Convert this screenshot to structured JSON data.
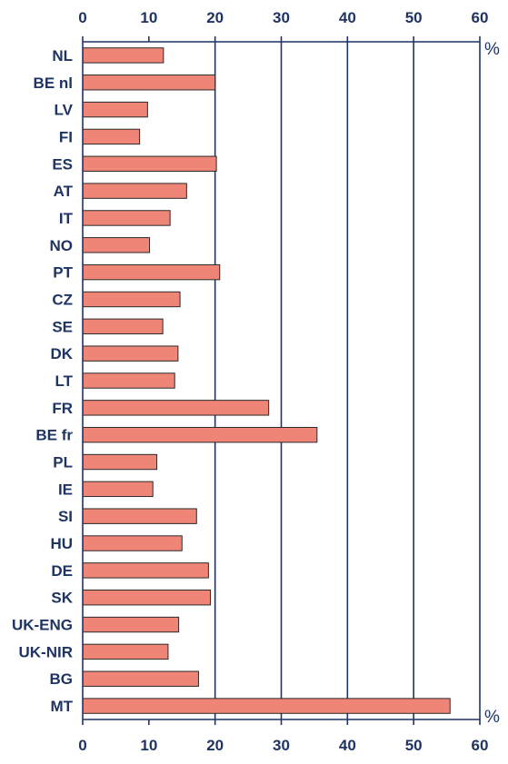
{
  "chart_data": {
    "type": "bar",
    "orientation": "horizontal",
    "categories": [
      "NL",
      "BE nl",
      "LV",
      "FI",
      "ES",
      "AT",
      "IT",
      "NO",
      "PT",
      "CZ",
      "SE",
      "DK",
      "LT",
      "FR",
      "BE fr",
      "PL",
      "IE",
      "SI",
      "HU",
      "DE",
      "SK",
      "UK-ENG",
      "UK-NIR",
      "BG",
      "MT"
    ],
    "values": [
      12.2,
      20.0,
      9.8,
      8.6,
      20.2,
      15.7,
      13.2,
      10.1,
      20.7,
      14.7,
      12.1,
      14.4,
      13.9,
      28.1,
      35.4,
      11.2,
      10.6,
      17.2,
      15.0,
      19.0,
      19.3,
      14.5,
      12.9,
      17.5,
      55.5
    ],
    "xlim": [
      0,
      60
    ],
    "xticks": [
      0,
      10,
      20,
      30,
      40,
      50,
      60
    ],
    "unit": "%",
    "grid": "vertical lines at 20, 30, 40, 50",
    "bar_color": "#ef8577",
    "bar_edge_color": "#2a2a2a",
    "axis_color": "#1f3463"
  }
}
